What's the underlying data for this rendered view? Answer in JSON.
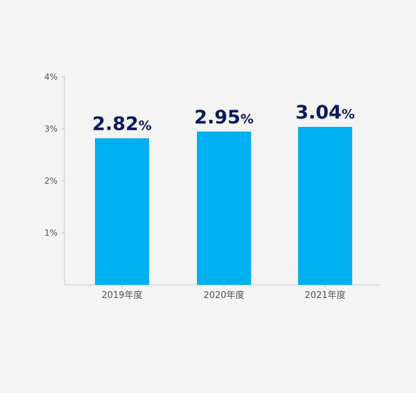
{
  "chart_data": {
    "type": "bar",
    "categories": [
      "2019年度",
      "2020年度",
      "2021年度"
    ],
    "values": [
      2.82,
      2.95,
      3.04
    ],
    "value_labels": [
      {
        "number": "2.82",
        "unit": "%"
      },
      {
        "number": "2.95",
        "unit": "%"
      },
      {
        "number": "3.04",
        "unit": "%"
      }
    ],
    "title": "",
    "xlabel": "",
    "ylabel": "",
    "ylim": [
      0,
      4
    ],
    "yticks": [
      1,
      2,
      3,
      4
    ],
    "ytick_labels": [
      "1%",
      "2%",
      "3%",
      "4%"
    ],
    "grid": false,
    "legend": "none",
    "colors": {
      "bar": "#00b0f0",
      "value_label": "#0a1a5c",
      "axis": "#c8c8c8",
      "tick_label": "#555555",
      "background": "#f4f4f4"
    }
  }
}
